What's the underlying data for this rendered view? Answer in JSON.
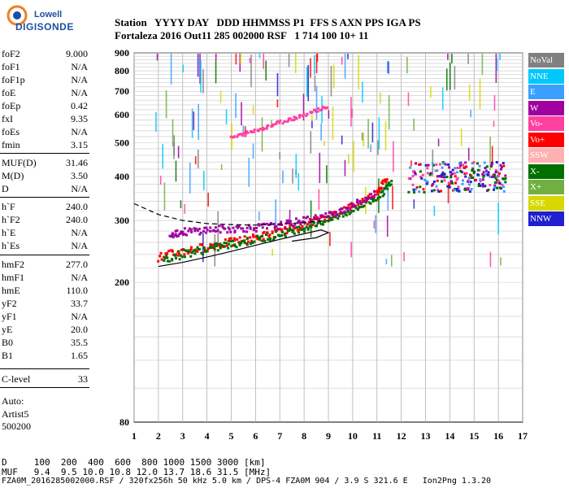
{
  "logo": {
    "line1": "Lowell",
    "line2": "DIGISONDE"
  },
  "header": {
    "columns": "Station   YYYY DAY   DDD HHMMSS P1  FFS S AXN PPS IGA PS",
    "values": "Fortaleza 2016 Out11 285 002000 RSF   1 714 100 10+ 11"
  },
  "params": [
    {
      "k": "foF2",
      "v": "9.000"
    },
    {
      "k": "foF1",
      "v": "N/A"
    },
    {
      "k": "foF1p",
      "v": "N/A"
    },
    {
      "k": "foE",
      "v": "N/A"
    },
    {
      "k": "foEp",
      "v": "0.42"
    },
    {
      "k": "fxI",
      "v": "9.35"
    },
    {
      "k": "foEs",
      "v": "N/A"
    },
    {
      "k": "fmin",
      "v": "3.15"
    },
    {
      "k": "MUF(D)",
      "v": "31.46"
    },
    {
      "k": "M(D)",
      "v": "3.50"
    },
    {
      "k": "D",
      "v": "N/A"
    },
    {
      "k": "h`F",
      "v": "240.0"
    },
    {
      "k": "h`F2",
      "v": "240.0"
    },
    {
      "k": "h`E",
      "v": "N/A"
    },
    {
      "k": "h`Es",
      "v": "N/A"
    },
    {
      "k": "hmF2",
      "v": "277.0"
    },
    {
      "k": "hmF1",
      "v": "N/A"
    },
    {
      "k": "hmE",
      "v": "110.0"
    },
    {
      "k": "yF2",
      "v": "33.7"
    },
    {
      "k": "yF1",
      "v": "N/A"
    },
    {
      "k": "yE",
      "v": "20.0"
    },
    {
      "k": "B0",
      "v": "35.5"
    },
    {
      "k": "B1",
      "v": "1.65"
    },
    {
      "k": "C-level",
      "v": "33"
    }
  ],
  "auto": {
    "line1": "Auto:",
    "line2": "Artist5",
    "line3": "500200"
  },
  "legend": [
    {
      "label": "NoVal",
      "color": "#808080"
    },
    {
      "label": "NNE",
      "color": "#00c8ff"
    },
    {
      "label": "E",
      "color": "#3aa0ff"
    },
    {
      "label": "W",
      "color": "#a000a0"
    },
    {
      "label": "Vo-",
      "color": "#ff40a0"
    },
    {
      "label": "Vo+",
      "color": "#ff0000"
    },
    {
      "label": "SSW",
      "color": "#ffb0b0"
    },
    {
      "label": "X-",
      "color": "#007000"
    },
    {
      "label": "X+",
      "color": "#70b040"
    },
    {
      "label": "SSE",
      "color": "#d8d800"
    },
    {
      "label": "NNW",
      "color": "#2020d0"
    }
  ],
  "footer": {
    "line1": "D     100  200  400  600  800 1000 1500 3000 [km]",
    "line2": "MUF   9.4  9.5 10.0 10.8 12.0 13.7 18.6 31.5 [MHz]",
    "line3": "FZA0M_2016285002000.RSF / 320fx256h 50 kHz 5.0 km / DPS-4 FZA0M 904 / 3.9 S 321.6 E   Ion2Png 1.3.20"
  },
  "chart_data": {
    "type": "scatter",
    "x_unit": "MHz",
    "y_unit": "km",
    "xlim": [
      1,
      17
    ],
    "ylim": [
      80,
      900
    ],
    "y_scale": "log",
    "x_ticks": [
      1,
      2,
      3,
      4,
      5,
      6,
      7,
      8,
      9,
      10,
      11,
      12,
      13,
      14,
      15,
      16,
      17
    ],
    "y_ticks": [
      80,
      200,
      300,
      400,
      500,
      600,
      700,
      800,
      900
    ],
    "grid": true,
    "legend_position": "right",
    "traces": [
      {
        "name": "Vo+",
        "color": "#ff0000",
        "points": [
          [
            2.0,
            235
          ],
          [
            3.0,
            245
          ],
          [
            4.0,
            252
          ],
          [
            5.0,
            260
          ],
          [
            6.0,
            268
          ],
          [
            7.0,
            278
          ],
          [
            8.0,
            292
          ],
          [
            9.0,
            308
          ],
          [
            10.0,
            330
          ],
          [
            11.0,
            360
          ],
          [
            11.4,
            395
          ]
        ]
      },
      {
        "name": "X-",
        "color": "#007000",
        "points": [
          [
            2.2,
            233
          ],
          [
            3.2,
            243
          ],
          [
            4.2,
            250
          ],
          [
            5.2,
            258
          ],
          [
            6.2,
            266
          ],
          [
            7.2,
            276
          ],
          [
            8.2,
            289
          ],
          [
            9.2,
            304
          ],
          [
            10.2,
            325
          ],
          [
            11.2,
            355
          ],
          [
            11.6,
            390
          ]
        ]
      },
      {
        "name": "W",
        "color": "#a000a0",
        "points": [
          [
            2.5,
            275
          ],
          [
            3.0,
            278
          ],
          [
            4.0,
            282
          ],
          [
            5.0,
            284
          ],
          [
            6.0,
            286
          ],
          [
            7.0,
            290
          ],
          [
            8.0,
            300
          ],
          [
            9.0,
            310
          ],
          [
            10.0,
            330
          ],
          [
            11.0,
            360
          ]
        ]
      },
      {
        "name": "Vo-",
        "color": "#ff40a0",
        "points": [
          [
            5.0,
            515
          ],
          [
            6.0,
            540
          ],
          [
            7.0,
            570
          ],
          [
            8.0,
            600
          ],
          [
            9.0,
            635
          ]
        ]
      }
    ],
    "profile_curve": [
      [
        2.0,
        222
      ],
      [
        3.0,
        228
      ],
      [
        4.0,
        236
      ],
      [
        5.0,
        245
      ],
      [
        6.0,
        255
      ],
      [
        7.0,
        265
      ],
      [
        8.0,
        275
      ],
      [
        8.7,
        282
      ],
      [
        9.0,
        277
      ],
      [
        8.5,
        268
      ],
      [
        7.5,
        262
      ]
    ],
    "dashed_curve": [
      [
        1.0,
        335
      ],
      [
        2.0,
        312
      ],
      [
        3.0,
        300
      ],
      [
        4.0,
        294
      ],
      [
        5.0,
        292
      ],
      [
        6.0,
        291
      ],
      [
        7.0,
        293
      ],
      [
        8.0,
        296
      ],
      [
        9.0,
        300
      ]
    ]
  }
}
